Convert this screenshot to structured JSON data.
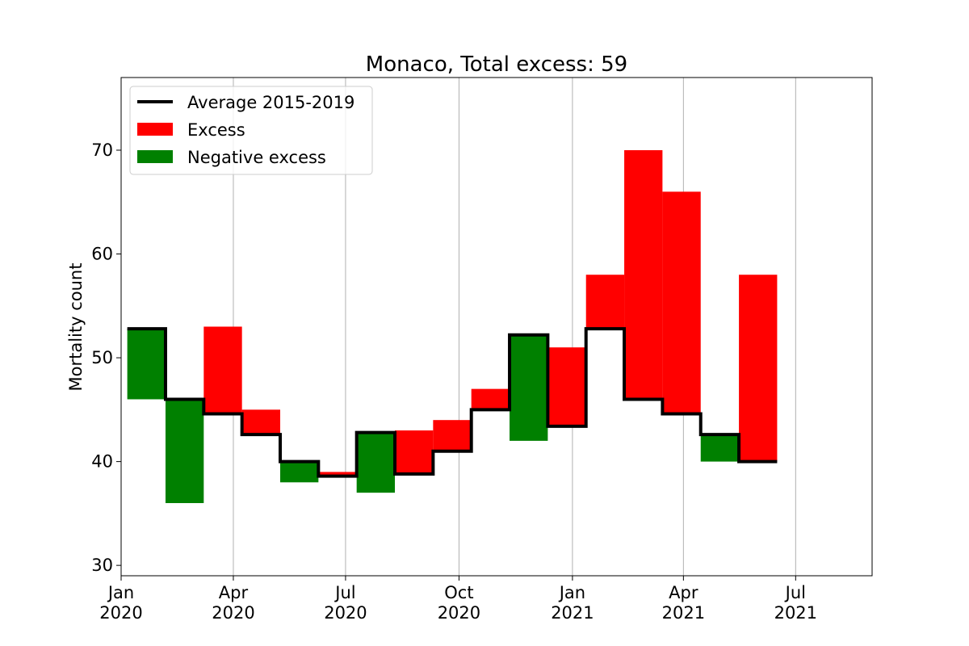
{
  "chart_data": {
    "type": "bar",
    "title": "Monaco, Total excess: 59",
    "xlabel": "",
    "ylabel": "Mortality count",
    "ylim": [
      29,
      77
    ],
    "xlim": [
      "2020-01-01",
      "2021-09-01"
    ],
    "yticks": [
      30,
      40,
      50,
      60,
      70
    ],
    "xticks": [
      {
        "date": "2020-01-01",
        "line1": "Jan",
        "line2": "2020"
      },
      {
        "date": "2020-04-01",
        "line1": "Apr",
        "line2": "2020"
      },
      {
        "date": "2020-07-01",
        "line1": "Jul",
        "line2": "2020"
      },
      {
        "date": "2020-10-01",
        "line1": "Oct",
        "line2": "2020"
      },
      {
        "date": "2021-01-01",
        "line1": "Jan",
        "line2": "2021"
      },
      {
        "date": "2021-04-01",
        "line1": "Apr",
        "line2": "2021"
      },
      {
        "date": "2021-07-01",
        "line1": "Jul",
        "line2": "2021"
      }
    ],
    "grid": "x-axis vertical lines",
    "legend": {
      "placement": "top-left",
      "entries": [
        {
          "label": "Average 2015-2019",
          "style": "line",
          "color": "#000000"
        },
        {
          "label": "Excess",
          "style": "patch",
          "color": "#ff0000"
        },
        {
          "label": "Negative excess",
          "style": "patch",
          "color": "#008000"
        }
      ]
    },
    "colors": {
      "excess": "#ff0000",
      "negative": "#008000",
      "average": "#000000"
    },
    "periods": [
      {
        "start": "2020-01-06",
        "end": "2020-02-06",
        "average": 52.8,
        "actual": 46
      },
      {
        "start": "2020-02-06",
        "end": "2020-03-08",
        "average": 46.0,
        "actual": 36
      },
      {
        "start": "2020-03-08",
        "end": "2020-04-08",
        "average": 44.6,
        "actual": 53
      },
      {
        "start": "2020-04-08",
        "end": "2020-05-09",
        "average": 42.6,
        "actual": 45
      },
      {
        "start": "2020-05-09",
        "end": "2020-06-09",
        "average": 40.0,
        "actual": 38
      },
      {
        "start": "2020-06-09",
        "end": "2020-07-10",
        "average": 38.6,
        "actual": 39
      },
      {
        "start": "2020-07-10",
        "end": "2020-08-10",
        "average": 42.8,
        "actual": 37
      },
      {
        "start": "2020-08-10",
        "end": "2020-09-10",
        "average": 38.8,
        "actual": 43
      },
      {
        "start": "2020-09-10",
        "end": "2020-10-11",
        "average": 41.0,
        "actual": 44
      },
      {
        "start": "2020-10-11",
        "end": "2020-11-11",
        "average": 45.0,
        "actual": 47
      },
      {
        "start": "2020-11-11",
        "end": "2020-12-12",
        "average": 52.2,
        "actual": 42
      },
      {
        "start": "2020-12-12",
        "end": "2021-01-12",
        "average": 43.4,
        "actual": 51
      },
      {
        "start": "2021-01-12",
        "end": "2021-02-12",
        "average": 52.8,
        "actual": 58
      },
      {
        "start": "2021-02-12",
        "end": "2021-03-15",
        "average": 46.0,
        "actual": 70
      },
      {
        "start": "2021-03-15",
        "end": "2021-04-15",
        "average": 44.6,
        "actual": 66
      },
      {
        "start": "2021-04-15",
        "end": "2021-05-16",
        "average": 42.6,
        "actual": 40
      },
      {
        "start": "2021-05-16",
        "end": "2021-06-16",
        "average": 40.0,
        "actual": 58
      }
    ]
  }
}
